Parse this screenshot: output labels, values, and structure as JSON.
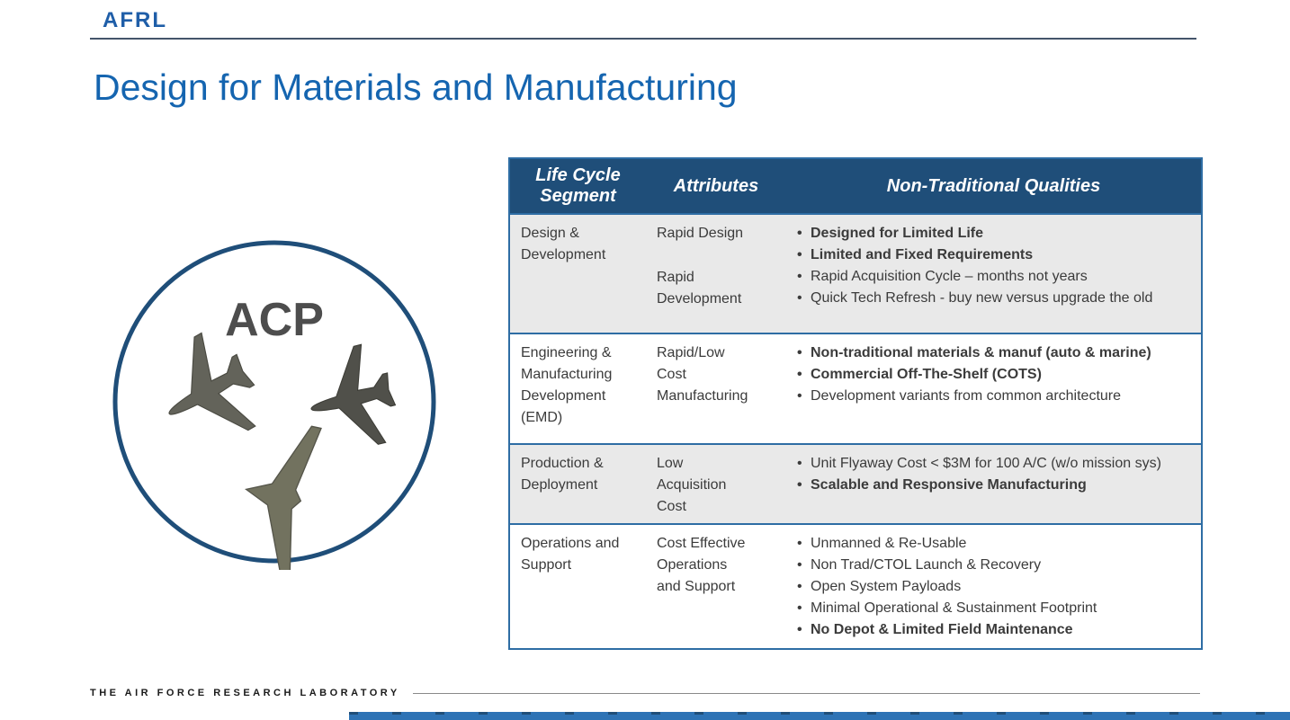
{
  "colors": {
    "logo_blue": "#1F5EA8",
    "title_blue": "#1565B0",
    "table_header_bg": "#1F4E79",
    "table_border": "#2E6DA4",
    "row_shaded": "#E9E9E9",
    "circle_outline": "#1F4E79",
    "bottom_bar": "#2E73B5"
  },
  "header": {
    "logo": "AFRL",
    "title": "Design for Materials and Manufacturing"
  },
  "graphic": {
    "label": "ACP",
    "icons": [
      "uav-swept-wing-left",
      "uav-swept-wing-right",
      "flying-wing"
    ]
  },
  "table": {
    "columns": [
      "Life Cycle Segment",
      "Attributes",
      "Non-Traditional Qualities"
    ],
    "rows": [
      {
        "segment": "Design &\nDevelopment",
        "attributes": [
          "Rapid Design",
          "Rapid\nDevelopment"
        ],
        "qualities": [
          {
            "text": "Designed for Limited Life",
            "bold": true
          },
          {
            "text": "Limited and Fixed Requirements",
            "bold": true
          },
          {
            "text": "Rapid Acquisition Cycle – months not years",
            "bold": false
          },
          {
            "text": "Quick Tech Refresh - buy new versus upgrade the old",
            "bold": false
          }
        ]
      },
      {
        "segment": "Engineering &\nManufacturing\nDevelopment\n(EMD)",
        "attributes": [
          "Rapid/Low\nCost\nManufacturing"
        ],
        "qualities": [
          {
            "text": "Non-traditional materials & manuf (auto & marine)",
            "bold": true
          },
          {
            "text": "Commercial Off-The-Shelf (COTS)",
            "bold": true
          },
          {
            "text": "Development variants from common architecture",
            "bold": false
          }
        ]
      },
      {
        "segment": "Production &\nDeployment",
        "attributes": [
          "Low\nAcquisition\nCost"
        ],
        "qualities": [
          {
            "text": "Unit Flyaway Cost < $3M for 100 A/C (w/o mission sys)",
            "bold": false
          },
          {
            "text": "Scalable and Responsive Manufacturing",
            "bold": true
          }
        ]
      },
      {
        "segment": "Operations and\nSupport",
        "attributes": [
          "Cost Effective\nOperations\nand Support"
        ],
        "qualities": [
          {
            "text": "Unmanned & Re-Usable",
            "bold": false
          },
          {
            "text": "Non Trad/CTOL Launch & Recovery",
            "bold": false
          },
          {
            "text": "Open System Payloads",
            "bold": false
          },
          {
            "text": "Minimal Operational & Sustainment Footprint",
            "bold": false
          },
          {
            "text": "No Depot & Limited Field Maintenance",
            "bold": true
          }
        ]
      }
    ]
  },
  "footer": {
    "text": "THE AIR FORCE RESEARCH LABORATORY"
  }
}
